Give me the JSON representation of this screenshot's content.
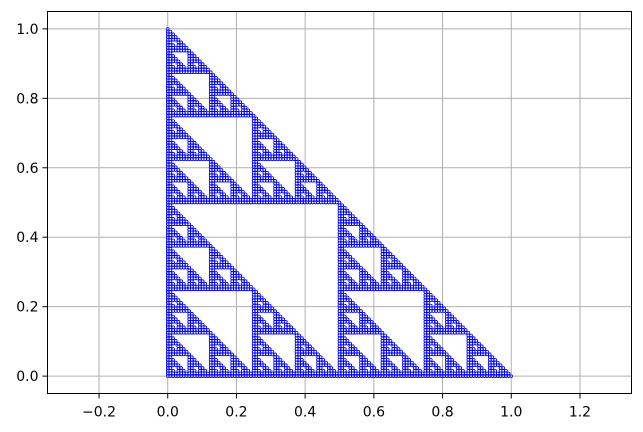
{
  "chart_data": {
    "type": "scatter",
    "title": "",
    "xlabel": "",
    "ylabel": "",
    "xlim": [
      -0.35,
      1.35
    ],
    "ylim": [
      -0.05,
      1.05
    ],
    "x_ticks": [
      -0.2,
      0.0,
      0.2,
      0.4,
      0.6,
      0.8,
      1.0,
      1.2
    ],
    "x_tick_labels": [
      "−0.2",
      "0.0",
      "0.2",
      "0.4",
      "0.6",
      "0.8",
      "1.0",
      "1.2"
    ],
    "y_ticks": [
      0.0,
      0.2,
      0.4,
      0.6,
      0.8,
      1.0
    ],
    "y_tick_labels": [
      "0.0",
      "0.2",
      "0.4",
      "0.6",
      "0.8",
      "1.0"
    ],
    "grid": true,
    "legend": "none",
    "series": [
      {
        "marker_color": "#0000ff",
        "shape": "Sierpinski triangle",
        "vertices": [
          [
            0,
            0
          ],
          [
            1,
            0
          ],
          [
            0,
            1
          ]
        ],
        "recursion_depth": 7
      }
    ]
  }
}
